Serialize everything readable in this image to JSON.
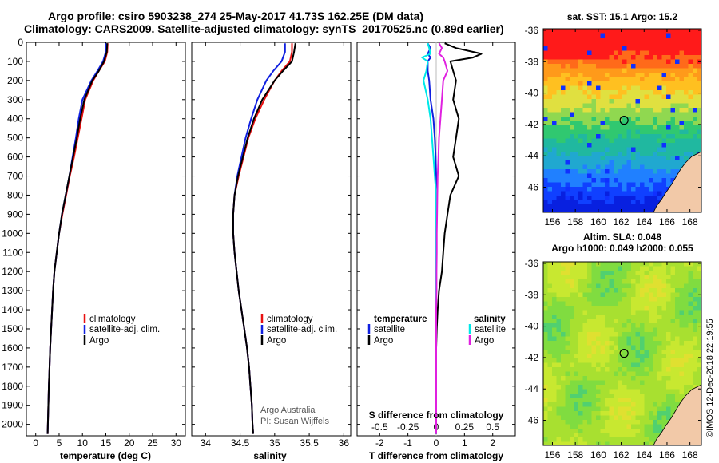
{
  "header": {
    "title_line1": "Argo profile: csiro 5903238_274 25-May-2017 41.73S 162.25E (DM data)",
    "title_line2": "Climatology: CARS2009. Satellite-adjusted climatology: synTS_20170525.nc (0.89d earlier)"
  },
  "colors": {
    "climatology": "#e81010",
    "satellite": "#1020e0",
    "argo": "#000000",
    "sat_salinity": "#00e8e8",
    "argo_salinity": "#e020e0",
    "land": "#f2c9a8"
  },
  "y_axis": {
    "ticks": [
      "0",
      "100",
      "200",
      "300",
      "400",
      "500",
      "600",
      "700",
      "800",
      "900",
      "1000",
      "1100",
      "1200",
      "1300",
      "1400",
      "1500",
      "1600",
      "1700",
      "1800",
      "1900",
      "2000"
    ]
  },
  "chart_data": [
    {
      "type": "line",
      "xlabel": "temperature (deg C)",
      "ylabel": "",
      "xlim": [
        -2,
        32
      ],
      "ylim": [
        2060,
        0
      ],
      "x_ticks": [
        "0",
        "5",
        "10",
        "15",
        "20",
        "25",
        "30"
      ],
      "legend": [
        "climatology",
        "satellite-adj. clim.",
        "Argo"
      ],
      "depth": [
        5,
        50,
        100,
        150,
        200,
        300,
        400,
        500,
        600,
        700,
        800,
        900,
        1000,
        1100,
        1200,
        1300,
        1400,
        1500,
        1600,
        1700,
        1800,
        1900,
        2000,
        2050
      ],
      "series": [
        {
          "name": "climatology",
          "values": [
            15.4,
            15.3,
            14.8,
            13.5,
            12.3,
            10.6,
            9.8,
            9.0,
            8.2,
            7.3,
            6.5,
            5.7,
            5.0,
            4.5,
            4.0,
            3.7,
            3.5,
            3.3,
            3.1,
            2.95,
            2.8,
            2.7,
            2.6,
            2.55
          ]
        },
        {
          "name": "satellite-adj. clim.",
          "values": [
            15.1,
            15.0,
            14.4,
            13.2,
            11.9,
            10.0,
            9.2,
            8.6,
            7.9,
            7.2,
            6.4,
            5.6,
            5.0,
            4.5,
            4.0,
            3.7,
            3.5,
            3.3,
            3.1,
            2.95,
            2.8,
            2.7,
            2.6,
            2.55
          ]
        },
        {
          "name": "Argo",
          "values": [
            15.3,
            15.2,
            14.6,
            13.5,
            12.1,
            10.4,
            9.5,
            8.8,
            8.0,
            7.2,
            6.4,
            5.6,
            5.0,
            4.5,
            4.0,
            3.7,
            3.5,
            3.3,
            3.1,
            2.95,
            2.8,
            2.7,
            2.6,
            2.55
          ]
        }
      ]
    },
    {
      "type": "line",
      "xlabel": "salinity",
      "ylabel": "",
      "xlim": [
        33.8,
        36.1
      ],
      "ylim": [
        2060,
        0
      ],
      "x_ticks": [
        "34",
        "34.5",
        "35",
        "35.5",
        "36"
      ],
      "legend": [
        "climatology",
        "satellite-adj. clim.",
        "Argo"
      ],
      "credit": [
        "Argo Australia",
        "PI: Susan Wijffels"
      ],
      "depth": [
        5,
        50,
        100,
        150,
        200,
        300,
        400,
        500,
        600,
        700,
        800,
        900,
        1000,
        1100,
        1200,
        1300,
        1400,
        1500,
        1600,
        1700,
        1800,
        1900,
        2000,
        2050
      ],
      "series": [
        {
          "name": "climatology",
          "values": [
            35.25,
            35.25,
            35.22,
            35.1,
            35.0,
            34.85,
            34.72,
            34.62,
            34.55,
            34.48,
            34.42,
            34.4,
            34.4,
            34.42,
            34.45,
            34.48,
            34.52,
            34.56,
            34.6,
            34.63,
            34.65,
            34.67,
            34.68,
            34.69
          ]
        },
        {
          "name": "satellite-adj. clim.",
          "values": [
            35.15,
            35.15,
            35.1,
            34.98,
            34.88,
            34.75,
            34.66,
            34.58,
            34.52,
            34.46,
            34.42,
            34.4,
            34.4,
            34.42,
            34.45,
            34.48,
            34.52,
            34.56,
            34.6,
            34.63,
            34.65,
            34.67,
            34.68,
            34.69
          ]
        },
        {
          "name": "Argo",
          "values": [
            35.3,
            35.28,
            35.25,
            35.12,
            35.0,
            34.82,
            34.7,
            34.61,
            34.54,
            34.47,
            34.42,
            34.4,
            34.4,
            34.42,
            34.45,
            34.48,
            34.52,
            34.56,
            34.6,
            34.63,
            34.65,
            34.67,
            34.68,
            34.69
          ]
        }
      ]
    },
    {
      "type": "line",
      "xlabel": "T difference from climatology",
      "x2label": "S difference from climatology",
      "ylabel": "",
      "xlim": [
        -2.8,
        2.8
      ],
      "ylim": [
        2060,
        0
      ],
      "x_ticks": [
        "-2",
        "-1",
        "0",
        "1",
        "2"
      ],
      "x2_ticks": [
        "-0.5",
        "-0.25",
        "0",
        "0.25",
        "0.5"
      ],
      "legend_left_title": "temperature",
      "legend_right_title": "salinity",
      "legend_left": [
        "satellite",
        "Argo"
      ],
      "legend_right": [
        "satellite",
        "Argo"
      ],
      "depth": [
        5,
        30,
        60,
        80,
        100,
        150,
        200,
        300,
        400,
        500,
        600,
        700,
        800,
        900,
        1000,
        1100,
        1200,
        1300,
        1400,
        1500,
        1600,
        1700,
        1800,
        1900,
        2000,
        2050
      ],
      "series": [
        {
          "name": "temperature satellite",
          "values": [
            -0.3,
            -0.2,
            -0.3,
            -0.2,
            -0.3,
            -0.3,
            -0.25,
            -0.2,
            -0.1,
            -0.05,
            -0.02,
            0,
            0,
            0,
            0,
            0,
            0,
            0,
            0,
            0,
            0,
            0,
            0,
            0,
            0,
            0
          ]
        },
        {
          "name": "temperature Argo",
          "values": [
            0.3,
            0.7,
            1.6,
            1.3,
            0.5,
            0.6,
            0.7,
            0.6,
            0.8,
            0.7,
            0.6,
            0.8,
            0.5,
            0.4,
            0.3,
            0.25,
            0.2,
            0.1,
            0.05,
            0.02,
            0,
            0,
            0,
            0,
            0,
            0
          ]
        },
        {
          "name": "salinity satellite",
          "values": [
            -0.3,
            -0.25,
            -0.2,
            -0.5,
            -0.3,
            -0.35,
            -0.45,
            -0.3,
            -0.2,
            -0.15,
            -0.1,
            -0.05,
            0,
            0,
            0,
            0,
            0,
            0,
            0,
            0,
            0,
            0,
            0,
            0,
            0,
            0
          ]
        },
        {
          "name": "salinity Argo",
          "values": [
            0.1,
            0.2,
            0.1,
            0.25,
            0.3,
            0.4,
            0.25,
            0.2,
            0.15,
            0.1,
            0.08,
            0.05,
            0.04,
            0.03,
            0.02,
            0.02,
            0.01,
            0.01,
            0,
            0,
            0,
            0,
            0,
            0,
            0,
            0
          ]
        }
      ]
    },
    {
      "type": "heatmap",
      "title": "sat. SST: 15.1 Argo: 15.2",
      "x_ticks": [
        "156",
        "158",
        "160",
        "162",
        "164",
        "166",
        "168"
      ],
      "y_ticks": [
        "-36",
        "-38",
        "-40",
        "-42",
        "-44",
        "-46"
      ],
      "xlim": [
        155.2,
        169
      ],
      "ylim": [
        -47.6,
        -35.9
      ],
      "marker": {
        "lon": 162.25,
        "lat": -41.73
      }
    },
    {
      "type": "heatmap",
      "title_line1": "Altim. SLA: 0.048",
      "title_line2": "Argo h1000: 0.049 h2000: 0.055",
      "x_ticks": [
        "156",
        "158",
        "160",
        "162",
        "164",
        "166",
        "168"
      ],
      "y_ticks": [
        "-36",
        "-38",
        "-40",
        "-42",
        "-44",
        "-46"
      ],
      "xlim": [
        155.2,
        169
      ],
      "ylim": [
        -47.6,
        -35.9
      ],
      "marker": {
        "lon": 162.25,
        "lat": -41.73
      }
    }
  ],
  "stamp": "©IMOS 12-Dec-2018 22:19:55"
}
